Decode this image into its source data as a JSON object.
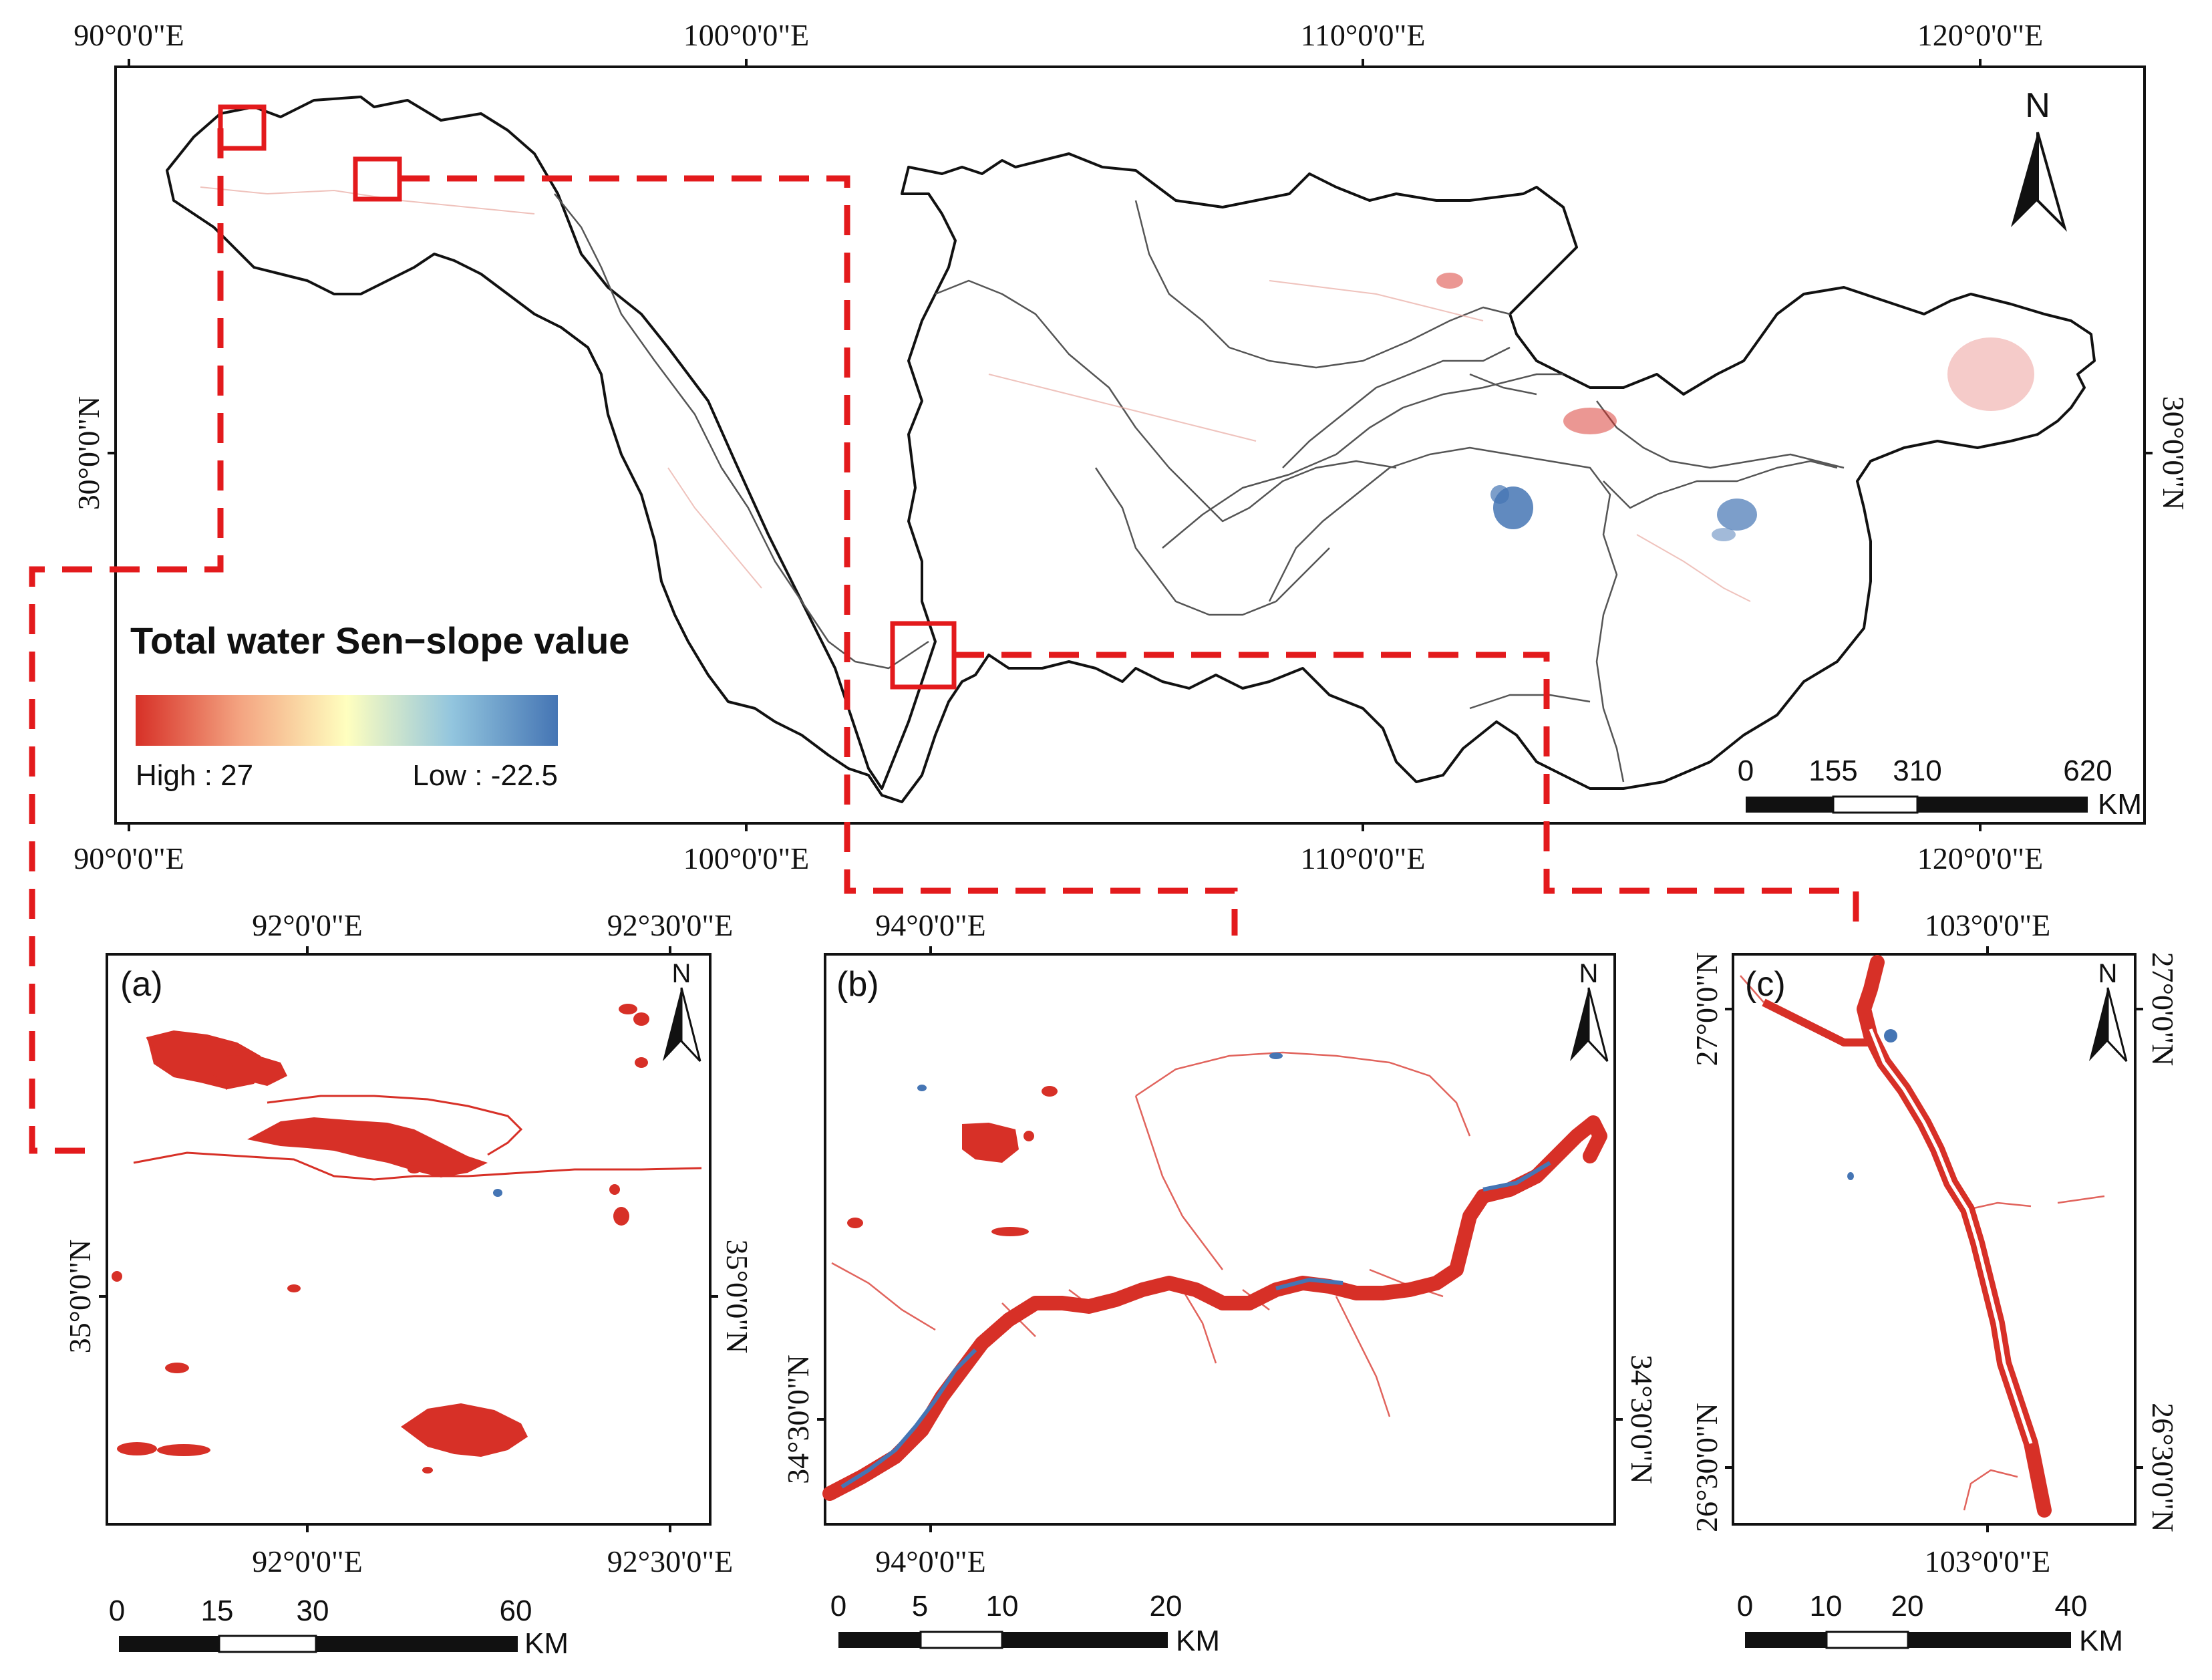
{
  "main_map": {
    "top_lon_labels": [
      "90°0'0\"E",
      "100°0'0\"E",
      "110°0'0\"E",
      "120°0'0\"E"
    ],
    "bottom_lon_labels": [
      "90°0'0\"E",
      "100°0'0\"E",
      "110°0'0\"E",
      "120°0'0\"E"
    ],
    "left_lat_label": "30°0'0\"N",
    "right_lat_label": "30°0'0\"N",
    "north_label": "N",
    "legend": {
      "title": "Total water Sen−slope value",
      "high_label": "High : 27",
      "low_label": "Low : -22.5",
      "high_value": 27,
      "low_value": -22.5,
      "colors": [
        "#d73027",
        "#f4a582",
        "#ffffbf",
        "#92c5de",
        "#4575b4"
      ]
    },
    "scale_bar": {
      "ticks": [
        "0",
        "155",
        "310",
        "620"
      ],
      "unit": "KM"
    }
  },
  "panel_a": {
    "label": "(a)",
    "top_lon_labels": [
      "92°0'0\"E",
      "92°30'0\"E"
    ],
    "bottom_lon_labels": [
      "92°0'0\"E",
      "92°30'0\"E"
    ],
    "left_lat_label": "35°0'0\"N",
    "right_lat_label": "35°0'0\"N",
    "north_label": "N",
    "scale_bar": {
      "ticks": [
        "0",
        "15",
        "30",
        "60"
      ],
      "unit": "KM"
    }
  },
  "panel_b": {
    "label": "(b)",
    "top_lon_label": "94°0'0\"E",
    "bottom_lon_label": "94°0'0\"E",
    "left_lat_label": "34°30'0\"N",
    "right_lat_label": "34°30'0\"N",
    "north_label": "N",
    "scale_bar": {
      "ticks": [
        "0",
        "5",
        "10",
        "20"
      ],
      "unit": "KM"
    }
  },
  "panel_c": {
    "label": "(c)",
    "top_lon_label": "103°0'0\"E",
    "bottom_lon_label": "103°0'0\"E",
    "left_lat_labels": [
      "27°0'0\"N",
      "26°30'0\"N"
    ],
    "right_lat_labels": [
      "27°0'0\"N",
      "26°30'0\"N"
    ],
    "north_label": "N",
    "scale_bar": {
      "ticks": [
        "0",
        "10",
        "20",
        "40"
      ],
      "unit": "KM"
    }
  },
  "colors": {
    "increase": "#d73027",
    "decrease": "#4575b4",
    "callout": "#e31a1c",
    "boundary": "#111111"
  }
}
